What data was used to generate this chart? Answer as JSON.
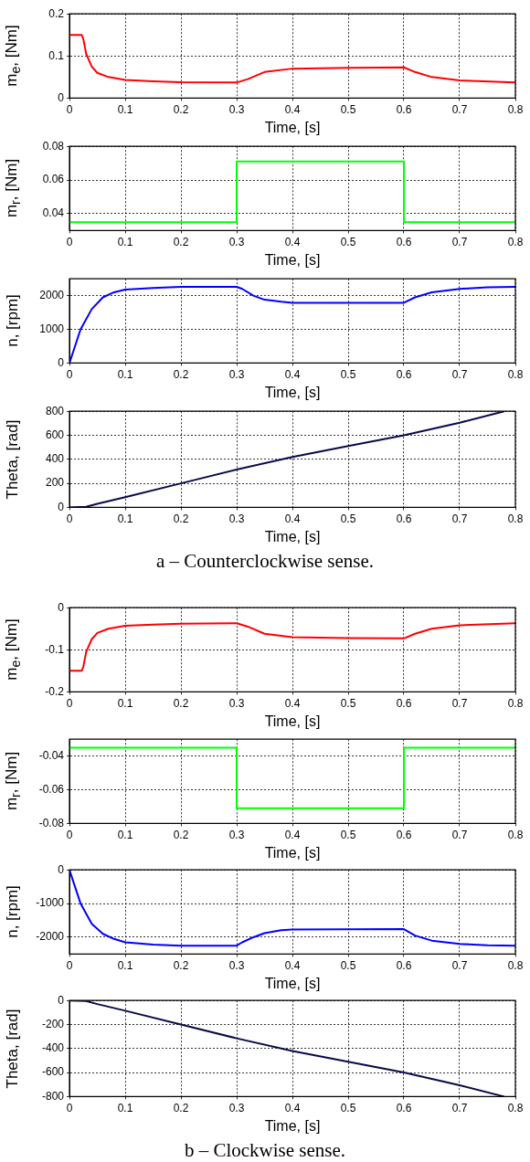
{
  "chart_data": [
    {
      "type": "line",
      "ylabel": "m$_{e}$, [Nm]",
      "xlabel": "Time, [s]",
      "xlim": [
        0,
        0.8
      ],
      "xticks": [
        0,
        0.1,
        0.2,
        0.3,
        0.4,
        0.5,
        0.6,
        0.7,
        0.8
      ],
      "ylim": [
        0,
        0.2
      ],
      "yticks": [
        0,
        0.1,
        0.2
      ],
      "grid": true,
      "x": [
        0,
        0.022,
        0.025,
        0.03,
        0.04,
        0.05,
        0.07,
        0.1,
        0.15,
        0.2,
        0.3,
        0.32,
        0.35,
        0.4,
        0.5,
        0.6,
        0.62,
        0.65,
        0.7,
        0.8
      ],
      "series": [
        {
          "color": "#ff0000",
          "values": [
            0.15,
            0.15,
            0.14,
            0.105,
            0.075,
            0.06,
            0.05,
            0.043,
            0.04,
            0.038,
            0.037,
            0.045,
            0.062,
            0.07,
            0.072,
            0.073,
            0.062,
            0.05,
            0.042,
            0.037
          ]
        }
      ]
    },
    {
      "type": "line",
      "ylabel": "m$_{r}$, [Nm]",
      "xlabel": "Time, [s]",
      "xlim": [
        0,
        0.8
      ],
      "xticks": [
        0,
        0.1,
        0.2,
        0.3,
        0.4,
        0.5,
        0.6,
        0.7,
        0.8
      ],
      "ylim": [
        0.03,
        0.08
      ],
      "yticks": [
        0.04,
        0.06,
        0.08
      ],
      "grid": true,
      "x": [
        0,
        0.3,
        0.3,
        0.6,
        0.6,
        0.8
      ],
      "series": [
        {
          "color": "#00ff00",
          "values": [
            0.035,
            0.035,
            0.071,
            0.071,
            0.035,
            0.035
          ]
        }
      ]
    },
    {
      "type": "line",
      "ylabel": "n, [rpm]",
      "xlabel": "Time, [s]",
      "xlim": [
        0,
        0.8
      ],
      "xticks": [
        0,
        0.1,
        0.2,
        0.3,
        0.4,
        0.5,
        0.6,
        0.7,
        0.8
      ],
      "ylim": [
        0,
        2500
      ],
      "yticks": [
        0,
        1000,
        2000
      ],
      "grid": true,
      "x": [
        0,
        0.02,
        0.04,
        0.06,
        0.08,
        0.1,
        0.15,
        0.2,
        0.3,
        0.31,
        0.33,
        0.35,
        0.38,
        0.4,
        0.6,
        0.62,
        0.65,
        0.7,
        0.75,
        0.8
      ],
      "series": [
        {
          "color": "#0000ff",
          "values": [
            0,
            1000,
            1600,
            1950,
            2100,
            2180,
            2230,
            2260,
            2260,
            2200,
            2000,
            1880,
            1820,
            1790,
            1790,
            1950,
            2100,
            2200,
            2250,
            2260
          ]
        }
      ]
    },
    {
      "type": "line",
      "ylabel": "Theta, [rad]",
      "xlabel": "Time, [s]",
      "xlim": [
        0,
        0.8
      ],
      "xticks": [
        0,
        0.1,
        0.2,
        0.3,
        0.4,
        0.5,
        0.6,
        0.7,
        0.8
      ],
      "ylim": [
        0,
        800
      ],
      "yticks": [
        0,
        200,
        400,
        600,
        800
      ],
      "grid": true,
      "x": [
        0,
        0.03,
        0.05,
        0.1,
        0.2,
        0.3,
        0.4,
        0.5,
        0.6,
        0.7,
        0.78
      ],
      "series": [
        {
          "color": "#0a0a4a",
          "values": [
            0,
            5,
            30,
            85,
            200,
            315,
            420,
            510,
            600,
            705,
            800
          ]
        }
      ],
      "annotations": [
        "a – Counterclockwise sense."
      ]
    },
    {
      "type": "line",
      "ylabel": "m$_{e}$, [Nm]",
      "xlabel": "Time, [s]",
      "xlim": [
        0,
        0.8
      ],
      "xticks": [
        0,
        0.1,
        0.2,
        0.3,
        0.4,
        0.5,
        0.6,
        0.7,
        0.8
      ],
      "ylim": [
        -0.2,
        0
      ],
      "yticks": [
        -0.2,
        -0.1,
        0
      ],
      "grid": true,
      "x": [
        0,
        0.022,
        0.025,
        0.03,
        0.04,
        0.05,
        0.07,
        0.1,
        0.15,
        0.2,
        0.3,
        0.32,
        0.35,
        0.4,
        0.5,
        0.6,
        0.62,
        0.65,
        0.7,
        0.8
      ],
      "series": [
        {
          "color": "#ff0000",
          "values": [
            -0.15,
            -0.15,
            -0.14,
            -0.105,
            -0.075,
            -0.06,
            -0.05,
            -0.043,
            -0.04,
            -0.038,
            -0.037,
            -0.045,
            -0.062,
            -0.07,
            -0.072,
            -0.073,
            -0.062,
            -0.05,
            -0.042,
            -0.037
          ]
        }
      ]
    },
    {
      "type": "line",
      "ylabel": "m$_{r}$, [Nm]",
      "xlabel": "Time, [s]",
      "xlim": [
        0,
        0.8
      ],
      "xticks": [
        0,
        0.1,
        0.2,
        0.3,
        0.4,
        0.5,
        0.6,
        0.7,
        0.8
      ],
      "ylim": [
        -0.08,
        -0.03
      ],
      "yticks": [
        -0.08,
        -0.06,
        -0.04
      ],
      "grid": true,
      "x": [
        0,
        0.3,
        0.3,
        0.6,
        0.6,
        0.8
      ],
      "series": [
        {
          "color": "#00ff00",
          "values": [
            -0.035,
            -0.035,
            -0.071,
            -0.071,
            -0.035,
            -0.035
          ]
        }
      ]
    },
    {
      "type": "line",
      "ylabel": "n, [rpm]",
      "xlabel": "Time, [s]",
      "xlim": [
        0,
        0.8
      ],
      "xticks": [
        0,
        0.1,
        0.2,
        0.3,
        0.4,
        0.5,
        0.6,
        0.7,
        0.8
      ],
      "ylim": [
        -2500,
        0
      ],
      "yticks": [
        -2000,
        -1000,
        0
      ],
      "grid": true,
      "x": [
        0,
        0.02,
        0.04,
        0.06,
        0.08,
        0.1,
        0.15,
        0.2,
        0.3,
        0.31,
        0.33,
        0.35,
        0.38,
        0.4,
        0.6,
        0.62,
        0.65,
        0.7,
        0.75,
        0.8
      ],
      "series": [
        {
          "color": "#0000ff",
          "values": [
            0,
            -1000,
            -1600,
            -1900,
            -2050,
            -2150,
            -2220,
            -2250,
            -2250,
            -2150,
            -2000,
            -1880,
            -1790,
            -1770,
            -1760,
            -1950,
            -2100,
            -2200,
            -2240,
            -2250
          ]
        }
      ]
    },
    {
      "type": "line",
      "ylabel": "Theta, [rad]",
      "xlabel": "Time, [s]",
      "xlim": [
        0,
        0.8
      ],
      "xticks": [
        0,
        0.1,
        0.2,
        0.3,
        0.4,
        0.5,
        0.6,
        0.7,
        0.8
      ],
      "ylim": [
        -800,
        0
      ],
      "yticks": [
        -800,
        -600,
        -400,
        -200,
        0
      ],
      "grid": true,
      "x": [
        0,
        0.03,
        0.05,
        0.1,
        0.2,
        0.3,
        0.4,
        0.5,
        0.6,
        0.7,
        0.78
      ],
      "series": [
        {
          "color": "#0a0a4a",
          "values": [
            0,
            -5,
            -30,
            -85,
            -200,
            -315,
            -420,
            -510,
            -600,
            -705,
            -800
          ]
        }
      ],
      "annotations": [
        "b – Clockwise sense."
      ]
    }
  ]
}
